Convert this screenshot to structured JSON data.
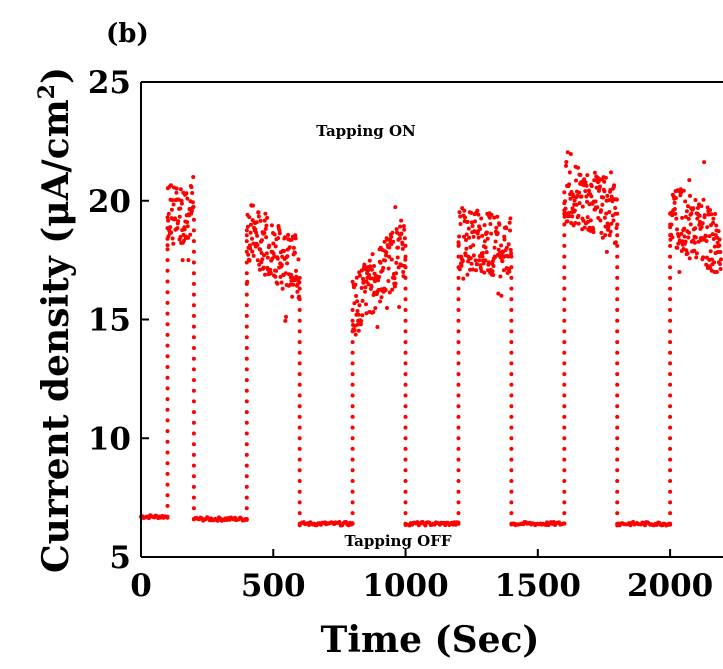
{
  "chart_data": {
    "type": "scatter",
    "panel_label": "(b)",
    "xlabel": "Time (Sec)",
    "ylabel_main": "Current density (μA/cm",
    "ylabel_sup": "2",
    "ylabel_close": ")",
    "xlim": [
      0,
      2200
    ],
    "ylim": [
      5,
      25
    ],
    "x_ticks": [
      "0",
      "500",
      "1000",
      "1500",
      "2000"
    ],
    "x_tick_values": [
      0,
      500,
      1000,
      1500,
      2000
    ],
    "y_ticks": [
      "5",
      "10",
      "15",
      "20",
      "25"
    ],
    "y_tick_values": [
      5,
      10,
      15,
      20,
      25
    ],
    "annotations": [
      "Tapping ON",
      "Tapping OFF"
    ],
    "marker_color": "#ff0000",
    "off_level": 6.4,
    "segments": [
      {
        "state": "off",
        "x": [
          0,
          100
        ],
        "y": 6.7
      },
      {
        "state": "on",
        "x": [
          100,
          200
        ],
        "y_range": [
          17.5,
          21.0
        ],
        "trend": [
          19.3,
          19.6
        ]
      },
      {
        "state": "off",
        "x": [
          200,
          400
        ],
        "y": 6.6
      },
      {
        "state": "on",
        "x": [
          400,
          600
        ],
        "y_range": [
          14.5,
          21.2
        ],
        "trend": [
          18.8,
          17.0
        ]
      },
      {
        "state": "off",
        "x": [
          600,
          800
        ],
        "y": 6.4
      },
      {
        "state": "on",
        "x": [
          800,
          1000
        ],
        "y_range": [
          13.8,
          21.7
        ],
        "trend": [
          15.5,
          18.2
        ]
      },
      {
        "state": "off",
        "x": [
          1000,
          1200
        ],
        "y": 6.4
      },
      {
        "state": "on",
        "x": [
          1200,
          1400
        ],
        "y_range": [
          16.0,
          20.9
        ],
        "trend": [
          18.5,
          18.0
        ]
      },
      {
        "state": "off",
        "x": [
          1400,
          1600
        ],
        "y": 6.4
      },
      {
        "state": "on",
        "x": [
          1600,
          1800
        ],
        "y_range": [
          16.2,
          22.7
        ],
        "trend": [
          20.4,
          19.5
        ]
      },
      {
        "state": "off",
        "x": [
          1800,
          2000
        ],
        "y": 6.4
      },
      {
        "state": "on",
        "x": [
          2000,
          2200
        ],
        "y_range": [
          17.0,
          21.9
        ],
        "trend": [
          19.5,
          18.0
        ]
      }
    ]
  }
}
